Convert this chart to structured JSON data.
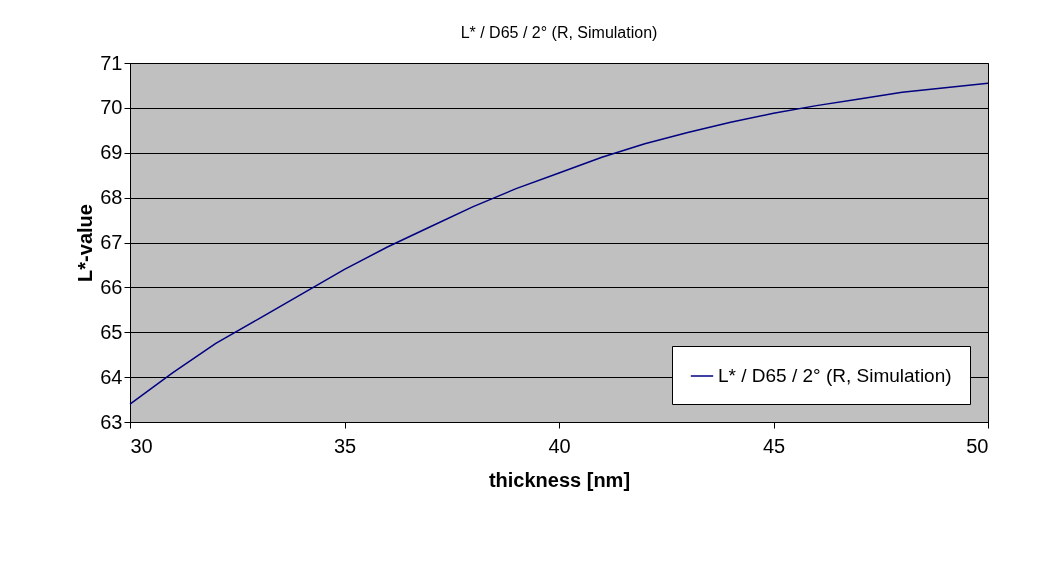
{
  "chart_data": {
    "type": "line",
    "title": "L* / D65 / 2° (R, Simulation)",
    "xlabel": "thickness [nm]",
    "ylabel": "L*-value",
    "x": [
      30,
      31,
      32,
      33,
      34,
      35,
      36,
      37,
      38,
      39,
      40,
      41,
      42,
      43,
      44,
      45,
      46,
      47,
      48,
      49,
      50
    ],
    "series": [
      {
        "name": "L* / D65 / 2° (R, Simulation)",
        "color": "#000080",
        "values": [
          63.4,
          64.1,
          64.75,
          65.3,
          65.85,
          66.4,
          66.9,
          67.35,
          67.8,
          68.2,
          68.55,
          68.9,
          69.2,
          69.45,
          69.68,
          69.88,
          70.05,
          70.2,
          70.35,
          70.45,
          70.55
        ]
      }
    ],
    "xlim": [
      30,
      50
    ],
    "xticks": [
      30,
      35,
      40,
      45,
      50
    ],
    "ylim": [
      63,
      71
    ],
    "yticks": [
      63,
      64,
      65,
      66,
      67,
      68,
      69,
      70,
      71
    ],
    "grid": "y",
    "legend": "bottom right",
    "marker": "none",
    "line_style": "solid"
  }
}
